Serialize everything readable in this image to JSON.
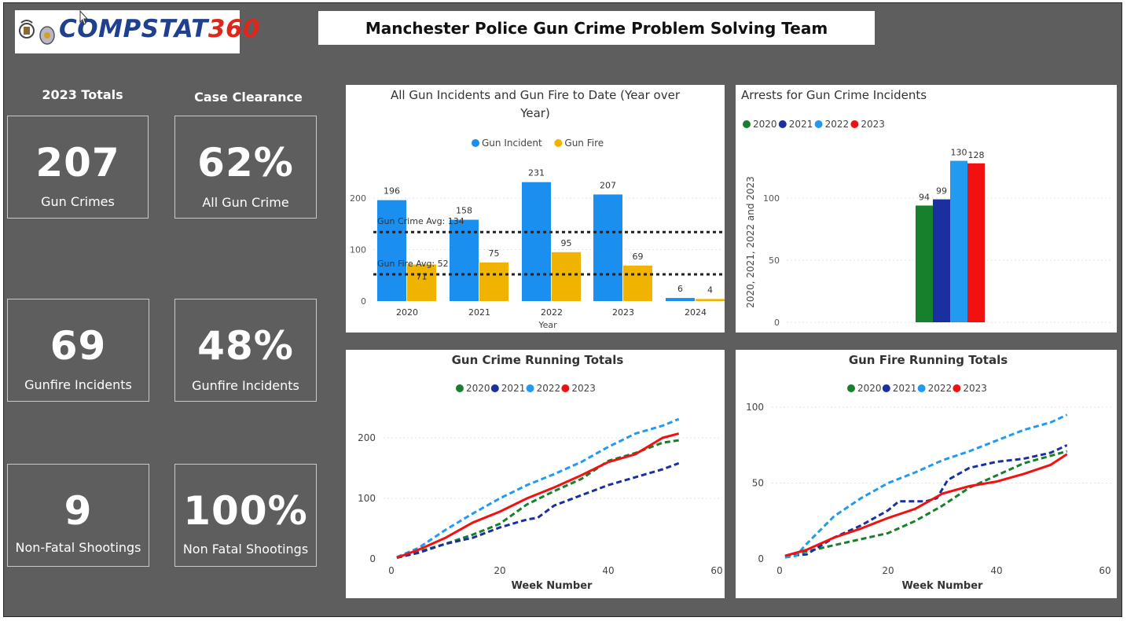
{
  "header": {
    "logo_text_prefix": "COMPSTAT",
    "logo_text_number": "360",
    "title": "Manchester Police Gun Crime Problem Solving Team"
  },
  "kpis": {
    "totals_heading": "2023 Totals",
    "clearance_heading": "Case Clearance",
    "cards": [
      {
        "value": "207",
        "label": "Gun Crimes"
      },
      {
        "value": "62%",
        "label": "All Gun Crime"
      },
      {
        "value": "69",
        "label": "Gunfire Incidents"
      },
      {
        "value": "48%",
        "label": "Gunfire Incidents"
      },
      {
        "value": "9",
        "label": "Non-Fatal Shootings"
      },
      {
        "value": "100%",
        "label": "Non Fatal Shootings"
      }
    ]
  },
  "colors": {
    "gun_incident": "#1a8ff0",
    "gun_fire": "#f0b400",
    "y2020": "#16802c",
    "y2021": "#1a2fa0",
    "y2022": "#229af0",
    "y2023": "#f21010"
  },
  "chart_data": [
    {
      "type": "bar",
      "title": "All Gun Incidents and Gun Fire to Date (Year over Year)",
      "xlabel": "Year",
      "categories": [
        "2020",
        "2021",
        "2022",
        "2023",
        "2024"
      ],
      "series": [
        {
          "name": "Gun Incident",
          "values": [
            196,
            158,
            231,
            207,
            6
          ]
        },
        {
          "name": "Gun Fire",
          "values": [
            71,
            75,
            95,
            69,
            4
          ]
        }
      ],
      "reference_lines": [
        {
          "label": "Gun Crime Avg: 134",
          "value": 134
        },
        {
          "label": "Gun Fire Avg: 52",
          "value": 52
        }
      ],
      "yticks": [
        "0",
        "100",
        "200"
      ],
      "ylim": [
        0,
        245
      ],
      "legend": "top-center"
    },
    {
      "type": "bar",
      "title": "Arrests for Gun Crime Incidents",
      "ylabel": "2020, 2021, 2022 and 2023",
      "series": [
        {
          "name": "2020",
          "value": 94
        },
        {
          "name": "2021",
          "value": 99
        },
        {
          "name": "2022",
          "value": 130
        },
        {
          "name": "2023",
          "value": 128
        }
      ],
      "yticks": [
        "0",
        "50",
        "100"
      ],
      "ylim": [
        0,
        140
      ],
      "legend": "top-left"
    },
    {
      "type": "line",
      "title": "Gun Crime Running Totals",
      "xlabel": "Week Number",
      "xticks": [
        "0",
        "20",
        "40",
        "60"
      ],
      "yticks": [
        "0",
        "100",
        "200"
      ],
      "xlim": [
        0,
        60
      ],
      "ylim": [
        0,
        250
      ],
      "legend": "top-center",
      "series": [
        {
          "name": "2020",
          "points": [
            [
              1,
              2
            ],
            [
              5,
              12
            ],
            [
              10,
              25
            ],
            [
              15,
              40
            ],
            [
              20,
              58
            ],
            [
              25,
              90
            ],
            [
              30,
              112
            ],
            [
              35,
              132
            ],
            [
              40,
              162
            ],
            [
              45,
              175
            ],
            [
              50,
              192
            ],
            [
              53,
              196
            ]
          ]
        },
        {
          "name": "2021",
          "points": [
            [
              1,
              2
            ],
            [
              5,
              10
            ],
            [
              10,
              25
            ],
            [
              15,
              35
            ],
            [
              20,
              52
            ],
            [
              25,
              65
            ],
            [
              27,
              68
            ],
            [
              30,
              88
            ],
            [
              35,
              105
            ],
            [
              40,
              122
            ],
            [
              45,
              135
            ],
            [
              50,
              148
            ],
            [
              53,
              158
            ]
          ]
        },
        {
          "name": "2022",
          "points": [
            [
              1,
              3
            ],
            [
              5,
              18
            ],
            [
              10,
              48
            ],
            [
              15,
              75
            ],
            [
              20,
              100
            ],
            [
              25,
              122
            ],
            [
              30,
              140
            ],
            [
              35,
              160
            ],
            [
              40,
              185
            ],
            [
              45,
              207
            ],
            [
              50,
              220
            ],
            [
              53,
              231
            ]
          ]
        },
        {
          "name": "2023",
          "points": [
            [
              1,
              2
            ],
            [
              5,
              15
            ],
            [
              10,
              35
            ],
            [
              15,
              60
            ],
            [
              20,
              78
            ],
            [
              25,
              100
            ],
            [
              30,
              118
            ],
            [
              35,
              138
            ],
            [
              40,
              160
            ],
            [
              45,
              173
            ],
            [
              50,
              200
            ],
            [
              53,
              207
            ]
          ]
        }
      ]
    },
    {
      "type": "line",
      "title": "Gun Fire Running Totals",
      "xlabel": "Week Number",
      "xticks": [
        "0",
        "20",
        "40",
        "60"
      ],
      "yticks": [
        "0",
        "50",
        "100"
      ],
      "xlim": [
        0,
        60
      ],
      "ylim": [
        0,
        100
      ],
      "legend": "top-center",
      "series": [
        {
          "name": "2020",
          "points": [
            [
              1,
              2
            ],
            [
              5,
              5
            ],
            [
              10,
              9
            ],
            [
              15,
              13
            ],
            [
              20,
              17
            ],
            [
              25,
              25
            ],
            [
              30,
              35
            ],
            [
              35,
              47
            ],
            [
              40,
              55
            ],
            [
              45,
              63
            ],
            [
              50,
              68
            ],
            [
              53,
              71
            ]
          ]
        },
        {
          "name": "2021",
          "points": [
            [
              1,
              2
            ],
            [
              5,
              3
            ],
            [
              10,
              14
            ],
            [
              15,
              22
            ],
            [
              20,
              32
            ],
            [
              22,
              38
            ],
            [
              27,
              38
            ],
            [
              29,
              40
            ],
            [
              31,
              52
            ],
            [
              35,
              60
            ],
            [
              40,
              64
            ],
            [
              45,
              66
            ],
            [
              50,
              70
            ],
            [
              53,
              75
            ]
          ]
        },
        {
          "name": "2022",
          "points": [
            [
              1,
              1
            ],
            [
              3,
              2
            ],
            [
              5,
              10
            ],
            [
              10,
              28
            ],
            [
              15,
              40
            ],
            [
              20,
              50
            ],
            [
              25,
              57
            ],
            [
              30,
              65
            ],
            [
              35,
              71
            ],
            [
              40,
              78
            ],
            [
              45,
              85
            ],
            [
              50,
              90
            ],
            [
              53,
              95
            ]
          ]
        },
        {
          "name": "2023",
          "points": [
            [
              1,
              2
            ],
            [
              5,
              6
            ],
            [
              10,
              14
            ],
            [
              15,
              20
            ],
            [
              20,
              27
            ],
            [
              25,
              33
            ],
            [
              30,
              43
            ],
            [
              35,
              48
            ],
            [
              40,
              51
            ],
            [
              45,
              56
            ],
            [
              50,
              62
            ],
            [
              53,
              69
            ]
          ]
        }
      ]
    }
  ]
}
